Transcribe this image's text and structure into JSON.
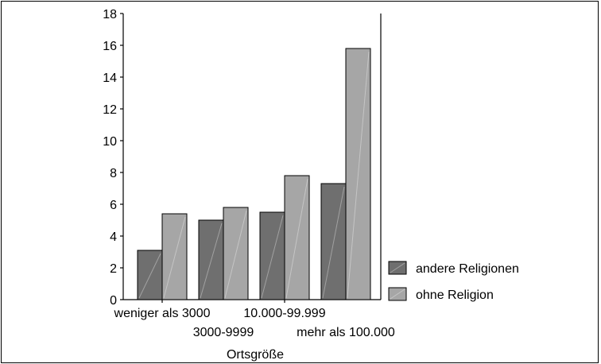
{
  "chart_data": {
    "type": "bar",
    "categories": [
      "weniger als 3000",
      "3000-9999",
      "10.000-99.999",
      "mehr als 100.000"
    ],
    "series": [
      {
        "name": "andere Religionen",
        "values": [
          3.1,
          5.0,
          5.5,
          7.3
        ],
        "color": "#6f6f6f"
      },
      {
        "name": "ohne Religion",
        "values": [
          5.4,
          5.8,
          7.8,
          15.8
        ],
        "color": "#a6a6a6"
      }
    ],
    "xlabel": "Ortsgröße",
    "ylabel": "",
    "ylim": [
      0,
      18
    ],
    "yticks": [
      0,
      2,
      4,
      6,
      8,
      10,
      12,
      14,
      16,
      18
    ],
    "legend_position": "right",
    "grid": false
  }
}
